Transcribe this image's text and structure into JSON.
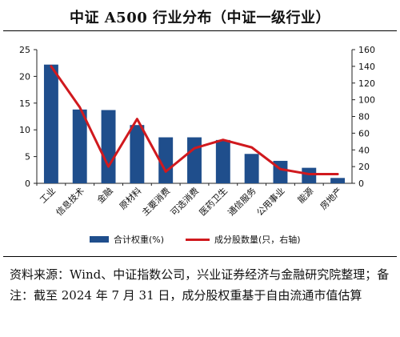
{
  "title": "中证 A500 行业分布（中证一级行业）",
  "legend": {
    "bar_label": "合计权重(%)",
    "line_label": "成分股数量(只，右轴)"
  },
  "source_note": "资料来源：Wind、中证指数公司，兴业证券经济与金融研究院整理；备注：截至 2024 年 7 月 31 日，成分股权重基于自由流通市值估算",
  "colors": {
    "bar": "#1f4e8c",
    "line": "#d0191e"
  },
  "chart_data": {
    "type": "bar",
    "categories": [
      "工业",
      "信息技术",
      "金融",
      "原材料",
      "主要消费",
      "可选消费",
      "医药卫生",
      "通信服务",
      "公用事业",
      "能源",
      "房地产"
    ],
    "series": [
      {
        "name": "合计权重(%)",
        "type": "bar",
        "axis": "left",
        "values": [
          22.2,
          13.8,
          13.7,
          10.9,
          8.6,
          8.6,
          8.1,
          5.5,
          4.2,
          2.9,
          1.0
        ]
      },
      {
        "name": "成分股数量(只，右轴)",
        "type": "line",
        "axis": "right",
        "values": [
          140,
          91,
          20,
          77,
          14,
          42,
          52,
          43,
          17,
          11,
          11
        ]
      }
    ],
    "y_left": {
      "ylim": [
        0,
        25
      ],
      "ticks": [
        0,
        5,
        10,
        15,
        20,
        25
      ]
    },
    "y_right": {
      "ylim": [
        0,
        160
      ],
      "ticks": [
        0,
        20,
        40,
        60,
        80,
        100,
        120,
        140,
        160
      ]
    },
    "legend_position": "bottom"
  }
}
